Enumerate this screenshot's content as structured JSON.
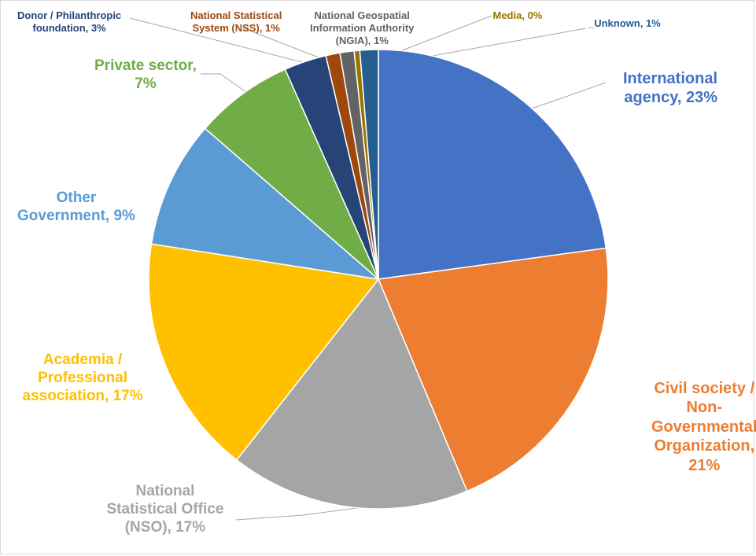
{
  "chart_data": {
    "type": "pie",
    "title": "",
    "start_angle_deg": 0,
    "direction": "clockwise",
    "slices": [
      {
        "label": "International\nagency, 23%",
        "category": "International agency",
        "value": 23,
        "color": "#4472C4",
        "label_color": "#4472C4"
      },
      {
        "label": "Civil society /\nNon-\nGovernmental\nOrganization,\n21%",
        "category": "Civil society / Non-Governmental Organization",
        "value": 21,
        "color": "#ED7D31",
        "label_color": "#ED7D31"
      },
      {
        "label": "National\nStatistical Office\n(NSO), 17%",
        "category": "National Statistical Office (NSO)",
        "value": 17,
        "color": "#A5A5A5",
        "label_color": "#A5A5A5"
      },
      {
        "label": "Academia /\nProfessional\nassociation, 17%",
        "category": "Academia / Professional association",
        "value": 17,
        "color": "#FFC000",
        "label_color": "#FFC000"
      },
      {
        "label": "Other\nGovernment, 9%",
        "category": "Other Government",
        "value": 9,
        "color": "#5B9BD5",
        "label_color": "#5B9BD5"
      },
      {
        "label": "Private sector,\n7%",
        "category": "Private sector",
        "value": 7,
        "color": "#70AD47",
        "label_color": "#70AD47"
      },
      {
        "label": "Donor / Philanthropic\nfoundation, 3%",
        "category": "Donor / Philanthropic foundation",
        "value": 3,
        "color": "#264478",
        "label_color": "#264478"
      },
      {
        "label": "National Statistical\nSystem (NSS), 1%",
        "category": "National Statistical System (NSS)",
        "value": 1,
        "color": "#9E480E",
        "label_color": "#9E480E"
      },
      {
        "label": "National Geospatial\nInformation Authority\n(NGIA), 1%",
        "category": "National Geospatial Information Authority (NGIA)",
        "value": 1,
        "color": "#636363",
        "label_color": "#636363"
      },
      {
        "label": "Media, 0%",
        "category": "Media",
        "value": 0.4,
        "color": "#997300",
        "label_color": "#997300"
      },
      {
        "label": "_Unknown, 1%",
        "category": "_Unknown",
        "value": 1.3,
        "color": "#255E91",
        "label_color": "#255E91"
      }
    ]
  }
}
